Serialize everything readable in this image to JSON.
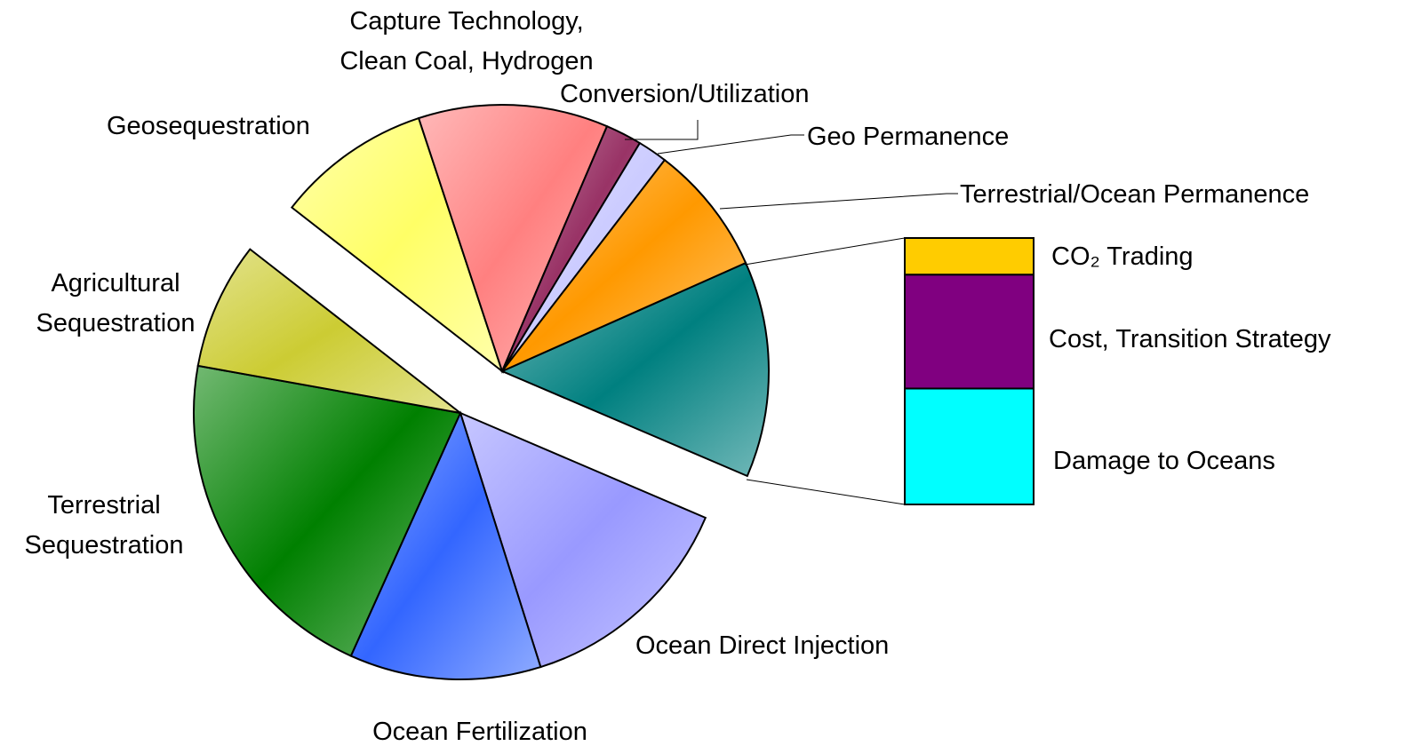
{
  "chart_data": {
    "type": "pie-of-bar",
    "other_color": "#008080",
    "slices": [
      {
        "name": "Ocean Direct Injection",
        "value": 13.7,
        "color": "#9999ff",
        "explode": true
      },
      {
        "name": "Ocean Fertilization",
        "value": 11.6,
        "color": "#3366ff",
        "explode": true
      },
      {
        "name": "Terrestrial\nSequestration",
        "value": 21.1,
        "color": "#008000",
        "explode": true
      },
      {
        "name": "Agricultural\nSequestration",
        "value": 7.7,
        "color": "#cccc33",
        "explode": true
      },
      {
        "name": "Geosequestration",
        "value": 9.4,
        "color": "#ffff66"
      },
      {
        "name": "Capture Technology,\nClean Coal, Hydrogen",
        "value": 11.5,
        "color": "#ff8080"
      },
      {
        "name": "Conversion/Utilization",
        "value": 2.2,
        "color": "#993366"
      },
      {
        "name": "Geo Permanence",
        "value": 1.8,
        "color": "#ccccff"
      },
      {
        "name": "Terrestrial/Ocean Permanence",
        "value": 7.9,
        "color": "#ff9900"
      }
    ],
    "bar": [
      {
        "name": "CO₂ Trading",
        "value": 1.8,
        "color": "#ffcc00"
      },
      {
        "name": "Cost, Transition Strategy",
        "value": 5.6,
        "color": "#800080"
      },
      {
        "name": "Damage to Oceans",
        "value": 5.7,
        "color": "#00ffff"
      }
    ]
  }
}
